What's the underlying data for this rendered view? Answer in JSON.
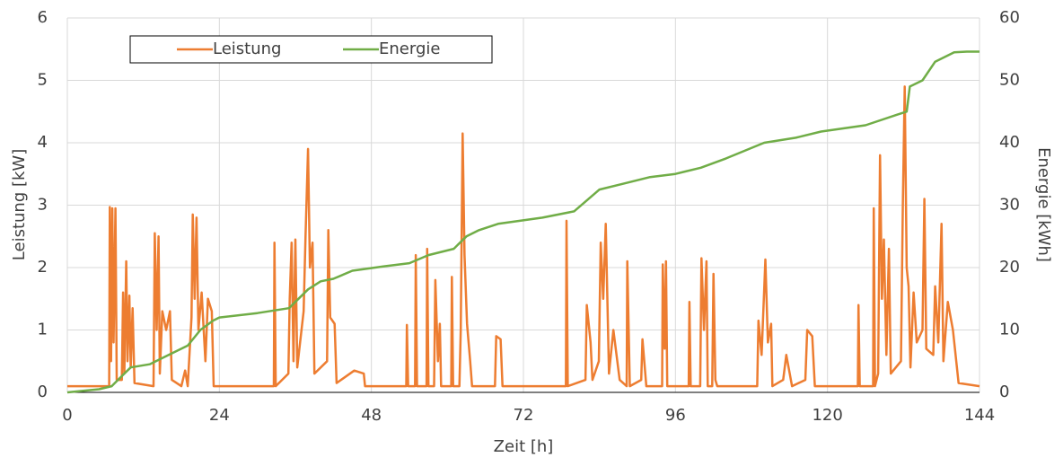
{
  "chart_data": {
    "type": "line",
    "xlabel": "Zeit [h]",
    "ylabel": "Leistung [kW]",
    "y2label": "Energie [kWh]",
    "xlim": [
      0,
      144
    ],
    "xticks": [
      0,
      24,
      48,
      72,
      96,
      120,
      144
    ],
    "ylim": [
      0,
      6
    ],
    "yticks": [
      0,
      1,
      2,
      3,
      4,
      5,
      6
    ],
    "y2lim": [
      0,
      60
    ],
    "y2ticks": [
      0,
      10,
      20,
      30,
      40,
      50,
      60
    ],
    "grid": true,
    "legend": "top-left",
    "series": [
      {
        "name": "Leistung",
        "color": "#ed7d31",
        "x": [
          0,
          6.6,
          6.7,
          6.9,
          7.1,
          7.3,
          7.6,
          7.8,
          8.6,
          8.8,
          9,
          9.3,
          9.5,
          9.8,
          10,
          10.3,
          10.6,
          13.6,
          13.8,
          14.1,
          14.4,
          14.6,
          15,
          15.6,
          16.2,
          16.5,
          18,
          18.6,
          19,
          19.6,
          19.8,
          20.1,
          20.4,
          20.7,
          21.2,
          21.8,
          22.2,
          22.8,
          23.1,
          32.6,
          32.7,
          32.9,
          34.9,
          35.1,
          35.4,
          35.7,
          36,
          36.3,
          37.3,
          37.6,
          38,
          38.3,
          38.7,
          39,
          41,
          41.2,
          41.5,
          42.2,
          42.5,
          45.3,
          46.8,
          47,
          53.5,
          53.6,
          53.8,
          54.9,
          55,
          55.2,
          56.7,
          56.8,
          57,
          57.9,
          58.1,
          58.5,
          58.8,
          59,
          60.6,
          60.7,
          60.9,
          61.9,
          62.1,
          62.4,
          62.7,
          63.1,
          63.6,
          63.9,
          67.5,
          67.7,
          68.4,
          68.7,
          78.7,
          78.8,
          79,
          81.8,
          82,
          82.6,
          82.9,
          83.9,
          84.2,
          84.6,
          85,
          85.5,
          86.2,
          87.2,
          88.3,
          88.4,
          88.8,
          90.6,
          90.8,
          91.4,
          93.9,
          94,
          94.3,
          94.5,
          94.7,
          98.1,
          98.2,
          98.4,
          99.9,
          100.1,
          100.5,
          100.9,
          101.1,
          101.8,
          102,
          102.3,
          102.6,
          108.9,
          109.1,
          109.6,
          110.2,
          110.6,
          111.1,
          111.3,
          113,
          113.5,
          114.4,
          116.5,
          116.8,
          117.6,
          118,
          124.8,
          124.9,
          125.1,
          127.2,
          127.3,
          127.5,
          128,
          128.3,
          128.6,
          128.9,
          129.3,
          129.7,
          130,
          131.6,
          131.9,
          132.2,
          132.5,
          132.8,
          133.1,
          133.6,
          134.1,
          135,
          135.3,
          135.6,
          136.7,
          137,
          137.5,
          138,
          138.3,
          139,
          139.8,
          140.7,
          144
        ],
        "values": [
          0.1,
          0.1,
          2.97,
          0.5,
          2.95,
          0.8,
          2.95,
          0.2,
          0.2,
          1.6,
          0.3,
          2.1,
          0.5,
          1.55,
          0.4,
          1.35,
          0.15,
          0.1,
          2.55,
          1.0,
          2.5,
          0.3,
          1.3,
          1.0,
          1.3,
          0.2,
          0.1,
          0.35,
          0.1,
          1.2,
          2.85,
          1.5,
          2.8,
          1.0,
          1.6,
          0.5,
          1.5,
          1.3,
          0.1,
          0.1,
          2.4,
          0.1,
          0.3,
          1.5,
          2.4,
          0.5,
          2.45,
          0.4,
          1.3,
          2.5,
          3.9,
          2.0,
          2.4,
          0.3,
          0.5,
          2.6,
          1.2,
          1.1,
          0.15,
          0.35,
          0.3,
          0.1,
          0.1,
          1.08,
          0.1,
          0.1,
          2.2,
          0.1,
          0.1,
          2.3,
          0.1,
          0.1,
          1.8,
          0.5,
          1.1,
          0.1,
          0.1,
          1.85,
          0.1,
          0.1,
          1.0,
          4.15,
          2.2,
          1.1,
          0.5,
          0.1,
          0.1,
          0.9,
          0.85,
          0.1,
          0.1,
          2.75,
          0.1,
          0.2,
          1.4,
          0.8,
          0.2,
          0.5,
          2.4,
          1.5,
          2.7,
          0.3,
          1.0,
          0.2,
          0.1,
          2.1,
          0.1,
          0.2,
          0.85,
          0.1,
          0.1,
          2.05,
          0.7,
          2.1,
          0.1,
          0.1,
          1.45,
          0.1,
          0.1,
          2.15,
          1.0,
          2.1,
          0.1,
          0.1,
          1.9,
          0.2,
          0.1,
          0.1,
          1.15,
          0.6,
          2.13,
          0.8,
          1.1,
          0.1,
          0.2,
          0.6,
          0.1,
          0.2,
          1.0,
          0.9,
          0.1,
          0.1,
          1.4,
          0.1,
          0.1,
          2.95,
          0.1,
          0.3,
          3.8,
          1.5,
          2.45,
          0.6,
          2.3,
          0.3,
          0.5,
          3.0,
          4.9,
          2.0,
          1.7,
          0.4,
          1.6,
          0.8,
          1.0,
          3.1,
          0.7,
          0.6,
          1.7,
          0.8,
          2.7,
          0.5,
          1.45,
          1.0,
          0.15,
          0.1
        ]
      },
      {
        "name": "Energie",
        "color": "#70ad47",
        "axis": "y2",
        "x": [
          0,
          5,
          7,
          8,
          9,
          10,
          13,
          15,
          19,
          21,
          23,
          24,
          30,
          35,
          38,
          40,
          42,
          45,
          50,
          54,
          57,
          61,
          63,
          65,
          68,
          75,
          80,
          84,
          88,
          92,
          96,
          100,
          104,
          110,
          115,
          119,
          126,
          131,
          132.5,
          133,
          135,
          137,
          140,
          142,
          144
        ],
        "values": [
          0,
          0.5,
          1,
          2,
          3,
          4,
          4.5,
          5.5,
          7.5,
          10,
          11.5,
          12,
          12.7,
          13.5,
          16.5,
          17.8,
          18.2,
          19.5,
          20.2,
          20.7,
          22,
          23,
          25,
          26,
          27,
          28,
          29,
          32.5,
          33.5,
          34.5,
          35,
          36,
          37.5,
          40,
          40.8,
          41.8,
          42.8,
          44.5,
          45,
          49,
          50,
          53,
          54.5,
          54.6,
          54.6
        ]
      }
    ]
  }
}
